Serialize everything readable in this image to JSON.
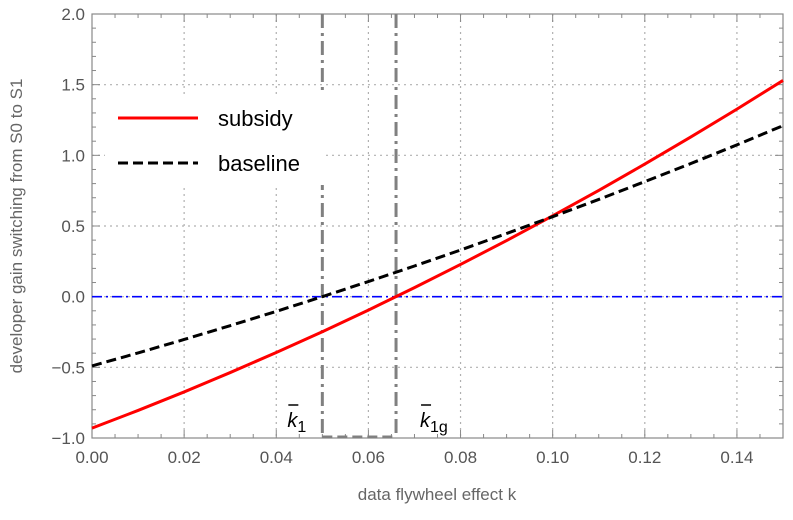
{
  "chart_data": {
    "type": "line",
    "title": "",
    "xlabel": "data flywheel effect k",
    "ylabel": "developer gain switching from S0 to S1",
    "xlim": [
      0,
      0.15
    ],
    "ylim": [
      -1.0,
      2.0
    ],
    "xticks": [
      "0.00",
      "0.02",
      "0.04",
      "0.06",
      "0.08",
      "0.10",
      "0.12",
      "0.14"
    ],
    "yticks": [
      "-1.0",
      "-0.5",
      "0.0",
      "0.5",
      "1.0",
      "1.5",
      "2.0"
    ],
    "grid": true,
    "legend_position": "top-left",
    "x": [
      0,
      0.01,
      0.02,
      0.03,
      0.04,
      0.05,
      0.06,
      0.07,
      0.08,
      0.09,
      0.1,
      0.11,
      0.12,
      0.13,
      0.14,
      0.15
    ],
    "series": [
      {
        "name": "subsidy",
        "color": "#ff0000",
        "style": "solid",
        "values": [
          -0.93,
          -0.805,
          -0.674,
          -0.537,
          -0.395,
          -0.248,
          -0.095,
          0.064,
          0.228,
          0.397,
          0.572,
          0.752,
          0.938,
          1.13,
          1.327,
          1.53
        ]
      },
      {
        "name": "baseline",
        "color": "#000000",
        "style": "dashed",
        "values": [
          -0.49,
          -0.398,
          -0.303,
          -0.205,
          -0.104,
          0.0,
          0.107,
          0.217,
          0.33,
          0.447,
          0.566,
          0.688,
          0.814,
          0.942,
          1.074,
          1.21
        ]
      }
    ],
    "reference_lines": {
      "horizontal": {
        "y": 0,
        "color": "#0000ff",
        "style": "dash-dot"
      },
      "vertical": [
        {
          "x": 0.05,
          "label": "k",
          "subscript": "1",
          "color": "#808080"
        },
        {
          "x": 0.066,
          "label": "k",
          "subscript": "1g",
          "color": "#808080"
        }
      ]
    }
  }
}
